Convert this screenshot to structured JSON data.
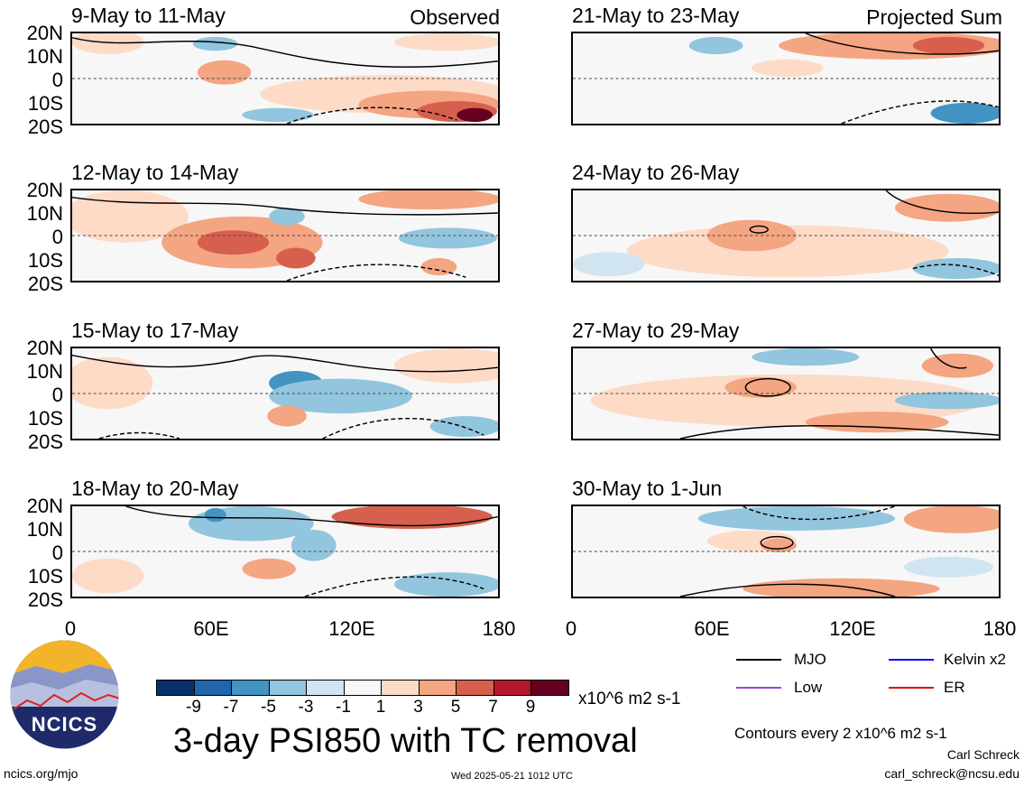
{
  "header": {
    "left_label": "Observed",
    "right_label": "Projected Sum"
  },
  "observed_panels": [
    {
      "title": "9-May to 11-May"
    },
    {
      "title": "12-May to 14-May"
    },
    {
      "title": "15-May to 17-May"
    },
    {
      "title": "18-May to 20-May"
    }
  ],
  "projected_panels": [
    {
      "title": "21-May to 23-May"
    },
    {
      "title": "24-May to 26-May"
    },
    {
      "title": "27-May to 29-May"
    },
    {
      "title": "30-May to 1-Jun"
    }
  ],
  "lat_labels": [
    "20N",
    "10N",
    "0",
    "10S",
    "20S"
  ],
  "lon_labels": [
    "0",
    "60E",
    "120E",
    "180"
  ],
  "colorbar": {
    "labels": [
      "-9",
      "-7",
      "-5",
      "-3",
      "-1",
      "1",
      "3",
      "5",
      "7",
      "9"
    ],
    "colors": [
      "#08306b",
      "#2166ac",
      "#4393c3",
      "#92c5de",
      "#d1e5f0",
      "#f7f7f7",
      "#fddbc7",
      "#f4a582",
      "#d6604d",
      "#b2182b",
      "#67001f"
    ],
    "units": "x10^6 m2 s-1"
  },
  "legend": {
    "mjo": "MJO",
    "kelvin": "Kelvin x2",
    "low": "Low",
    "er": "ER",
    "mjo_color": "#000000",
    "kelvin_color": "#0000ff",
    "low_color": "#a040e0",
    "er_color": "#e00000"
  },
  "main_title": "3-day PSI850 with TC removal",
  "contours_note": "Contours every 2 x10^6 m2 s-1",
  "author": "Carl Schreck",
  "email": "carl_schreck@ncsu.edu",
  "site": "ncics.org/mjo",
  "timestamp": "Wed 2025-05-21 1012 UTC",
  "logo_text": "NCICS"
}
